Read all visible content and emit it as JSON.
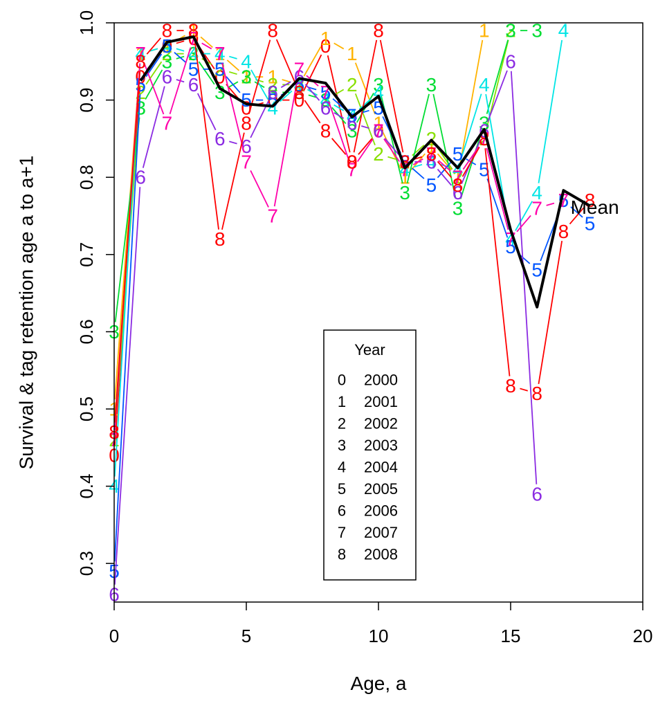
{
  "chart_data": {
    "type": "line",
    "title": "",
    "xlabel": "Age, a",
    "ylabel": "Survival & tag retention age a to a+1",
    "xlim": [
      0,
      20
    ],
    "ylim": [
      0.25,
      1.0
    ],
    "xticks": [
      0,
      5,
      10,
      15,
      20
    ],
    "yticks": [
      0.3,
      0.4,
      0.5,
      0.6,
      0.7,
      0.8,
      0.9,
      1.0
    ],
    "legend": {
      "title": "Year",
      "position": "bottom-center",
      "symbols": [
        "0",
        "1",
        "2",
        "3",
        "4",
        "5",
        "6",
        "7",
        "8"
      ],
      "labels": [
        "2000",
        "2001",
        "2002",
        "2003",
        "2004",
        "2005",
        "2006",
        "2007",
        "2008"
      ]
    },
    "series": [
      {
        "name": "2000",
        "symbol": "0",
        "color": "#ff0000",
        "x": [
          0,
          1,
          2,
          3,
          4,
          5,
          6,
          7,
          8,
          9,
          10
        ],
        "y": [
          0.44,
          0.93,
          0.97,
          0.98,
          0.93,
          0.89,
          0.9,
          0.9,
          0.97,
          0.82,
          0.86
        ]
      },
      {
        "name": "2001",
        "symbol": "1",
        "color": "#ffb300",
        "x": [
          0,
          1,
          2,
          3,
          4,
          5,
          6,
          7,
          8,
          9,
          10,
          11,
          12,
          13,
          14
        ],
        "y": [
          0.5,
          0.96,
          0.97,
          0.99,
          0.96,
          0.93,
          0.93,
          0.92,
          0.98,
          0.96,
          0.87,
          0.8,
          0.84,
          0.8,
          0.99
        ]
      },
      {
        "name": "2002",
        "symbol": "2",
        "color": "#88e000",
        "x": [
          0,
          1,
          2,
          3,
          4,
          5,
          6,
          7,
          8,
          9,
          10,
          11,
          12,
          13,
          14,
          15
        ],
        "y": [
          0.46,
          0.91,
          0.96,
          0.96,
          0.94,
          0.93,
          0.92,
          0.92,
          0.9,
          0.92,
          0.83,
          0.82,
          0.85,
          0.8,
          0.85,
          0.99
        ]
      },
      {
        "name": "2003",
        "symbol": "3",
        "color": "#00dd33",
        "x": [
          0,
          1,
          2,
          3,
          4,
          5,
          6,
          7,
          8,
          9,
          10,
          11,
          12,
          13,
          14,
          15,
          16
        ],
        "y": [
          0.6,
          0.89,
          0.95,
          0.96,
          0.91,
          0.93,
          0.91,
          0.91,
          0.9,
          0.86,
          0.92,
          0.78,
          0.92,
          0.76,
          0.87,
          0.99,
          0.99
        ]
      },
      {
        "name": "2004",
        "symbol": "4",
        "color": "#00e5e5",
        "x": [
          0,
          1,
          2,
          3,
          4,
          5,
          6,
          7,
          8,
          9,
          10,
          11,
          12,
          13,
          14,
          15,
          16,
          17
        ],
        "y": [
          0.4,
          0.96,
          0.97,
          0.96,
          0.96,
          0.95,
          0.89,
          0.92,
          0.9,
          0.88,
          0.91,
          0.81,
          0.82,
          0.81,
          0.92,
          0.72,
          0.78,
          0.99
        ]
      },
      {
        "name": "2005",
        "symbol": "5",
        "color": "#0055ff",
        "x": [
          0,
          1,
          2,
          3,
          4,
          5,
          6,
          7,
          8,
          9,
          10,
          11,
          12,
          13,
          14,
          15,
          16,
          17,
          18
        ],
        "y": [
          0.29,
          0.92,
          0.97,
          0.94,
          0.94,
          0.9,
          0.9,
          0.92,
          0.91,
          0.88,
          0.89,
          0.82,
          0.79,
          0.83,
          0.81,
          0.71,
          0.68,
          0.77,
          0.74
        ]
      },
      {
        "name": "2006",
        "symbol": "6",
        "color": "#8b2be2",
        "x": [
          0,
          1,
          2,
          3,
          4,
          5,
          6,
          7,
          8,
          9,
          10,
          11,
          12,
          13,
          14,
          15,
          16
        ],
        "y": [
          0.26,
          0.8,
          0.93,
          0.92,
          0.85,
          0.84,
          0.91,
          0.93,
          0.89,
          0.87,
          0.86,
          0.82,
          0.82,
          0.78,
          0.86,
          0.95,
          0.39
        ]
      },
      {
        "name": "2007",
        "symbol": "7",
        "color": "#ff00aa",
        "x": [
          0,
          1,
          2,
          3,
          4,
          5,
          6,
          7,
          8,
          9,
          10,
          11,
          12,
          13,
          14,
          15,
          16,
          17
        ],
        "y": [
          0.46,
          0.96,
          0.87,
          0.98,
          0.96,
          0.82,
          0.75,
          0.94,
          0.91,
          0.81,
          0.86,
          0.81,
          0.83,
          0.8,
          0.85,
          0.72,
          0.76,
          0.77
        ]
      },
      {
        "name": "2008",
        "symbol": "8",
        "color": "#ff0000",
        "x": [
          0,
          1,
          2,
          3,
          4,
          5,
          6,
          7,
          8,
          9,
          10,
          11,
          12,
          13,
          14,
          15,
          16,
          17,
          18
        ],
        "y": [
          0.47,
          0.95,
          0.99,
          0.99,
          0.72,
          0.87,
          0.99,
          0.91,
          0.86,
          0.82,
          0.99,
          0.82,
          0.83,
          0.79,
          0.85,
          0.53,
          0.52,
          0.73,
          0.77
        ]
      }
    ],
    "mean": {
      "label": "Mean",
      "color": "#000000",
      "x": [
        1,
        2,
        3,
        4,
        5,
        6,
        7,
        8,
        9,
        10,
        11,
        12,
        13,
        14,
        15,
        16,
        17,
        18
      ],
      "y": [
        0.925,
        0.975,
        0.982,
        0.915,
        0.895,
        0.892,
        0.928,
        0.922,
        0.878,
        0.905,
        0.812,
        0.848,
        0.812,
        0.862,
        0.732,
        0.632,
        0.783,
        0.763
      ]
    }
  }
}
